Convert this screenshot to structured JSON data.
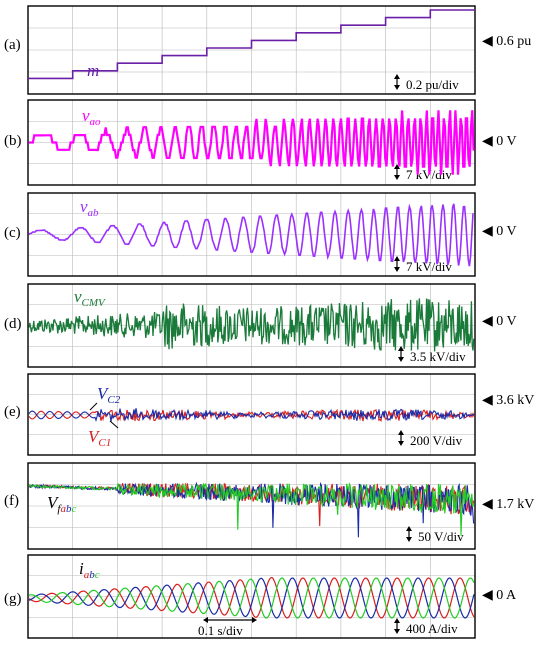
{
  "chart_data": [
    {
      "type": "line",
      "panel": "(a)",
      "signal_label": "m",
      "signal_color": "#6a1fa8",
      "reference_marker": "◀ 0.6 pu",
      "scale": "0.2 pu/div",
      "series": [
        {
          "name": "m",
          "color": "#6a1fa8",
          "steps": [
            0.1,
            0.2,
            0.3,
            0.4,
            0.5,
            0.6,
            0.7,
            0.8,
            0.9,
            1.0
          ]
        }
      ]
    },
    {
      "type": "line",
      "panel": "(b)",
      "signal_label": "v",
      "signal_subscript": "ao",
      "signal_color": "#ff00ff",
      "reference_marker": "◀ 0 V",
      "scale": "7 kV/div",
      "series": [
        {
          "name": "vao",
          "color": "#ff00ff"
        }
      ]
    },
    {
      "type": "line",
      "panel": "(c)",
      "signal_label": "v",
      "signal_subscript": "ab",
      "signal_color": "#9b30ff",
      "reference_marker": "◀ 0 V",
      "scale": "7 kV/div",
      "series": [
        {
          "name": "vab",
          "color": "#9b30ff"
        }
      ]
    },
    {
      "type": "line",
      "panel": "(d)",
      "signal_label": "v",
      "signal_subscript": "CMV",
      "signal_color": "#1a7a3a",
      "reference_marker": "◀ 0 V",
      "scale": "3.5 kV/div",
      "series": [
        {
          "name": "vCMV",
          "color": "#1a7a3a"
        }
      ]
    },
    {
      "type": "line",
      "panel": "(e)",
      "labels": [
        {
          "main": "V",
          "sub": "C2",
          "color": "#1a2aa8"
        },
        {
          "main": "V",
          "sub": "C1",
          "color": "#d81e1e"
        }
      ],
      "reference_marker": "◀ 3.6 kV",
      "scale": "200 V/div",
      "series": [
        {
          "name": "VC1",
          "color": "#d81e1e"
        },
        {
          "name": "VC2",
          "color": "#1a2aa8"
        }
      ]
    },
    {
      "type": "line",
      "panel": "(f)",
      "label_main": "V",
      "label_sub": [
        {
          "text": "f",
          "color": "#000000"
        },
        {
          "text": "a",
          "color": "#d81e1e"
        },
        {
          "text": "b",
          "color": "#1a2aa8"
        },
        {
          "text": "c",
          "color": "#22cc22"
        }
      ],
      "reference_marker": "◀ 1.7 kV",
      "scale": "50 V/div",
      "series": [
        {
          "name": "Vfa",
          "color": "#d81e1e"
        },
        {
          "name": "Vfb",
          "color": "#1a2aa8"
        },
        {
          "name": "Vfc",
          "color": "#22cc22"
        }
      ]
    },
    {
      "type": "line",
      "panel": "(g)",
      "label_main": "i",
      "label_sub": [
        {
          "text": "a",
          "color": "#d81e1e"
        },
        {
          "text": "b",
          "color": "#1a2aa8"
        },
        {
          "text": "c",
          "color": "#22cc22"
        }
      ],
      "reference_marker": "◀ 0 A",
      "scale": "400 A/div",
      "time_scale": "0.1 s/div",
      "series": [
        {
          "name": "ia",
          "color": "#d81e1e"
        },
        {
          "name": "ib",
          "color": "#1a2aa8"
        },
        {
          "name": "ic",
          "color": "#22cc22"
        }
      ]
    }
  ]
}
